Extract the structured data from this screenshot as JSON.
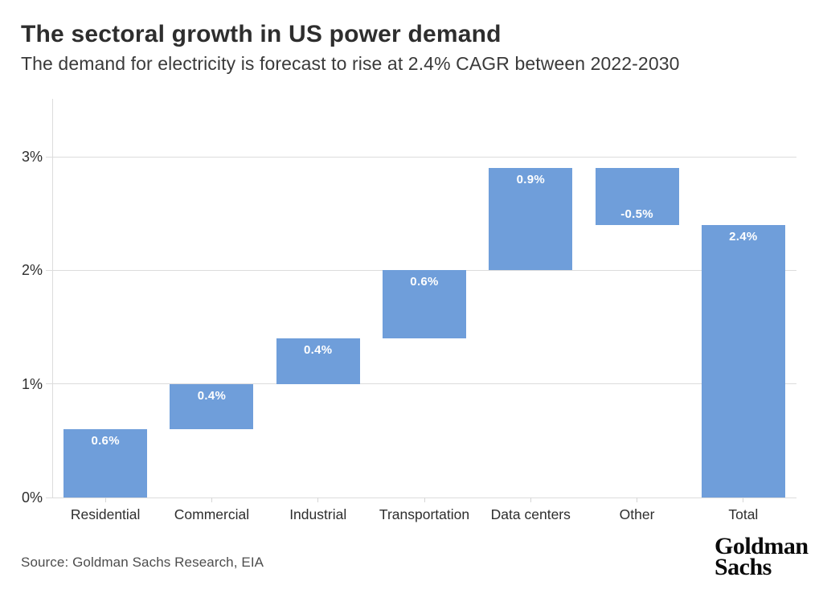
{
  "header": {
    "title": "The sectoral growth in US power demand",
    "subtitle": "The demand for electricity is forecast to rise at 2.4% CAGR between 2022-2030"
  },
  "footer": {
    "source": "Source: Goldman Sachs Research, EIA",
    "logo_line1": "Goldman",
    "logo_line2": "Sachs"
  },
  "chart_data": {
    "type": "bar",
    "subtype": "waterfall",
    "title": "The sectoral growth in US power demand",
    "categories": [
      "Residential",
      "Commercial",
      "Industrial",
      "Transportation",
      "Data centers",
      "Other",
      "Total"
    ],
    "values": [
      0.6,
      0.4,
      0.4,
      0.6,
      0.9,
      -0.5,
      2.4
    ],
    "is_total": [
      false,
      false,
      false,
      false,
      false,
      false,
      true
    ],
    "labels": [
      "0.6%",
      "0.4%",
      "0.4%",
      "0.6%",
      "0.9%",
      "-0.5%",
      "2.4%"
    ],
    "cumulative_starts": [
      0.0,
      0.6,
      1.0,
      1.4,
      2.0,
      2.9,
      0.0
    ],
    "cumulative_ends": [
      0.6,
      1.0,
      1.4,
      2.0,
      2.9,
      2.4,
      2.4
    ],
    "y_ticks": [
      {
        "value": 0,
        "label": "0%"
      },
      {
        "value": 1,
        "label": "1%"
      },
      {
        "value": 2,
        "label": "2%"
      },
      {
        "value": 3,
        "label": "3%"
      }
    ],
    "ylim": [
      0,
      3.51
    ],
    "xlabel": "",
    "ylabel": "",
    "grid": true,
    "legend": false,
    "bar_color": "#6f9eda",
    "value_label_color": "#ffffff",
    "grid_color": "#dcdcdc",
    "axis_text_color": "#2e2e2e"
  }
}
